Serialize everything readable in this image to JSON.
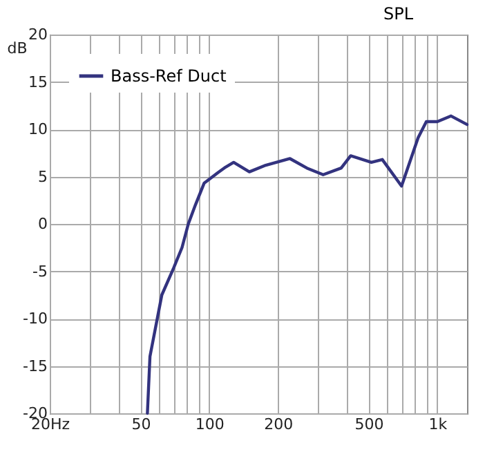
{
  "chart_data": {
    "type": "line",
    "title": "SPL",
    "ylabel": "dB",
    "log": "x",
    "grid": true,
    "legend": "top left",
    "line_style": "solid",
    "marker": "none",
    "xlim": [
      20,
      1350
    ],
    "ylim": [
      -20,
      20
    ],
    "xticks": [
      {
        "value": 20,
        "label": "20Hz"
      },
      {
        "value": 30,
        "label": null
      },
      {
        "value": 40,
        "label": null
      },
      50,
      {
        "value": 60,
        "label": null
      },
      {
        "value": 70,
        "label": null
      },
      {
        "value": 80,
        "label": null
      },
      {
        "value": 90,
        "label": null
      },
      100,
      200,
      {
        "value": 300,
        "label": null
      },
      {
        "value": 400,
        "label": null
      },
      500,
      {
        "value": 600,
        "label": null
      },
      {
        "value": 700,
        "label": null
      },
      {
        "value": 800,
        "label": null
      },
      {
        "value": 900,
        "label": null
      },
      {
        "value": 1000,
        "label": "1k"
      }
    ],
    "yticks": [
      -20,
      -15,
      -10,
      -5,
      0,
      5,
      10,
      15,
      20
    ],
    "series": [
      {
        "name": "Bass-Ref Duct",
        "color": "#33337f",
        "x": [
          53.6,
          55,
          62,
          70,
          76,
          81,
          87,
          95,
          109,
          118,
          128,
          150,
          177,
          226,
          268,
          316,
          379,
          417,
          514,
          574,
          697,
          824,
          895,
          1000,
          1149,
          1350
        ],
        "values": [
          -20,
          -14,
          -7.5,
          -4.6,
          -2.5,
          0,
          2,
          4.3,
          5.4,
          6,
          6.5,
          5.5,
          6.2,
          6.9,
          5.9,
          5.2,
          5.9,
          7.2,
          6.5,
          6.8,
          4,
          9.1,
          10.8,
          10.8,
          11.4,
          10.5
        ]
      }
    ]
  }
}
